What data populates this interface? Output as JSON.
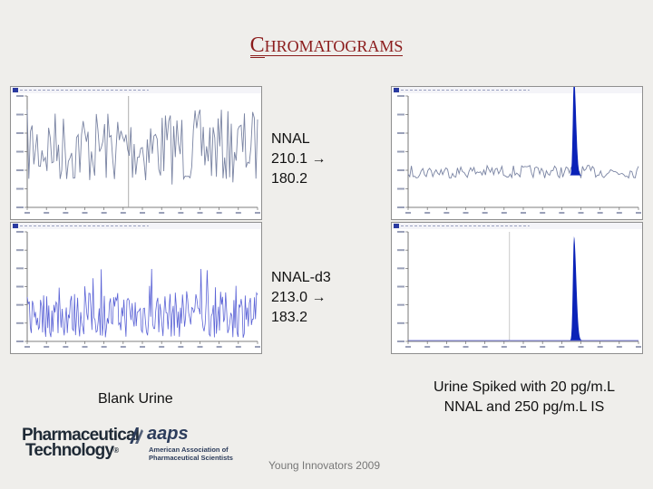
{
  "slide": {
    "title_first": "C",
    "title_rest": "HROMATOGRAMS",
    "labels": {
      "nnal": {
        "line1": "NNAL",
        "line2": "210.1 ",
        "line3": "180.2"
      },
      "nnal_d3": {
        "line1": "NNAL-d3",
        "line2": "213.0 ",
        "line3": "183.2"
      }
    },
    "arrow": "→",
    "captions": {
      "blank": "Blank Urine",
      "spiked_line1": "Urine Spiked with 20 pg/m.L",
      "spiked_line2": "NNAL and 250 pg/m.L IS"
    },
    "footer": "Young Innovators 2009",
    "logos": {
      "pt_line1": "Pharmaceutical",
      "pt_line2": "Technology",
      "pt_reg": "®",
      "aaps_word": "aaps",
      "aaps_org_line1": "American Association of",
      "aaps_org_line2": "Pharmaceutical Scientists"
    }
  },
  "colors": {
    "title": "#8b1c1c",
    "trace_gray": "#7a84a3",
    "trace_blue": "#5b63d6",
    "peak_fill": "#0a22b8",
    "background": "#efeeeb"
  }
}
